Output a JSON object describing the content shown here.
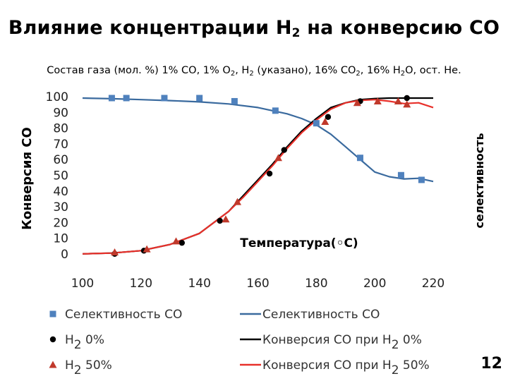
{
  "slide": {
    "title": {
      "pre": "Влияние концентрации H",
      "sub": "2",
      "post": " на конверсию CO"
    },
    "subtitle": {
      "parts": [
        {
          "t": "Состав газа (мол. %) 1% CO, 1% O"
        },
        {
          "s": "2"
        },
        {
          "t": ", H"
        },
        {
          "s": "2"
        },
        {
          "t": " (указано), 16% CO"
        },
        {
          "s": "2"
        },
        {
          "t": ", 16% H"
        },
        {
          "s": "2"
        },
        {
          "t": "O, ост. He."
        }
      ]
    },
    "page_number": "12"
  },
  "chart_data": {
    "type": "scatter",
    "title": "",
    "xlabel": "Температура(◦C)",
    "ylabel": "Конверсия CO",
    "y2label": "селективность",
    "xlim": [
      100,
      220
    ],
    "ylim": [
      0,
      100
    ],
    "xticks": [
      100,
      120,
      140,
      160,
      180,
      200,
      220
    ],
    "yticks": [
      0,
      10,
      20,
      30,
      40,
      50,
      60,
      70,
      80,
      90,
      100
    ],
    "grid": false,
    "legend_position": "bottom",
    "series": [
      {
        "name": "Селективность CO",
        "kind": "markers",
        "marker": "square",
        "color": "#4f81bd",
        "x": [
          110,
          115,
          128,
          140,
          152,
          166,
          180,
          195,
          209,
          216
        ],
        "y": [
          100,
          100,
          100,
          100,
          98,
          92,
          84,
          62,
          51,
          48
        ]
      },
      {
        "name": "Селективность CO",
        "kind": "line",
        "color": "#3a6a9e",
        "x": [
          100,
          110,
          120,
          130,
          140,
          150,
          160,
          170,
          175,
          180,
          185,
          190,
          195,
          200,
          205,
          210,
          215,
          220
        ],
        "y": [
          100,
          99.6,
          99,
          98.4,
          97.6,
          96.3,
          94,
          90,
          87,
          83,
          77,
          69,
          61,
          53,
          50,
          48.6,
          49,
          47
        ]
      },
      {
        "name": "H2 0%",
        "legend_parts": [
          {
            "t": "H"
          },
          {
            "s": "2"
          },
          {
            "t": " 0%"
          }
        ],
        "kind": "markers",
        "marker": "circle",
        "color": "#000000",
        "x": [
          111,
          121,
          134,
          147,
          164,
          169,
          184,
          195,
          211
        ],
        "y": [
          1,
          3,
          8,
          22,
          52,
          67,
          88,
          98,
          100
        ]
      },
      {
        "name": "H2 50%",
        "legend_parts": [
          {
            "t": "H"
          },
          {
            "s": "2"
          },
          {
            "t": " 50%"
          }
        ],
        "kind": "markers",
        "marker": "triangle",
        "color": "#c0392b",
        "x": [
          111,
          122,
          132,
          149,
          153,
          167,
          183,
          194,
          201,
          208,
          211
        ],
        "y": [
          2,
          4,
          9,
          23,
          34,
          62,
          85,
          97,
          98,
          98,
          96
        ]
      },
      {
        "name": "Конверсия CO при H2 0%",
        "legend_parts": [
          {
            "t": "Конверсия CO при H"
          },
          {
            "s": "2"
          },
          {
            "t": " 0%"
          }
        ],
        "kind": "line",
        "color": "#000000",
        "x": [
          100,
          110,
          120,
          130,
          140,
          150,
          155,
          160,
          165,
          170,
          175,
          180,
          185,
          190,
          195,
          200,
          205,
          210,
          215,
          220
        ],
        "y": [
          1,
          1.5,
          3,
          7,
          14,
          28,
          38,
          48,
          58,
          69,
          79,
          87,
          94,
          97,
          99,
          99.7,
          100,
          100,
          100,
          100
        ]
      },
      {
        "name": "Конверсия CO при H2 50%",
        "legend_parts": [
          {
            "t": "Конверсия CO при H"
          },
          {
            "s": "2"
          },
          {
            "t": " 50%"
          }
        ],
        "kind": "line",
        "color": "#e8302a",
        "x": [
          100,
          110,
          120,
          130,
          140,
          150,
          155,
          160,
          165,
          170,
          175,
          180,
          185,
          190,
          195,
          200,
          205,
          210,
          215,
          220
        ],
        "y": [
          1,
          1.5,
          3,
          7,
          14,
          28,
          37,
          47,
          57,
          68,
          78,
          86,
          93,
          97,
          98.5,
          99,
          98,
          96.5,
          97,
          94
        ]
      }
    ],
    "legend": [
      {
        "series": 0
      },
      {
        "series": 1
      },
      {
        "series": 2
      },
      {
        "series": 4
      },
      {
        "series": 3
      },
      {
        "series": 5
      }
    ]
  }
}
